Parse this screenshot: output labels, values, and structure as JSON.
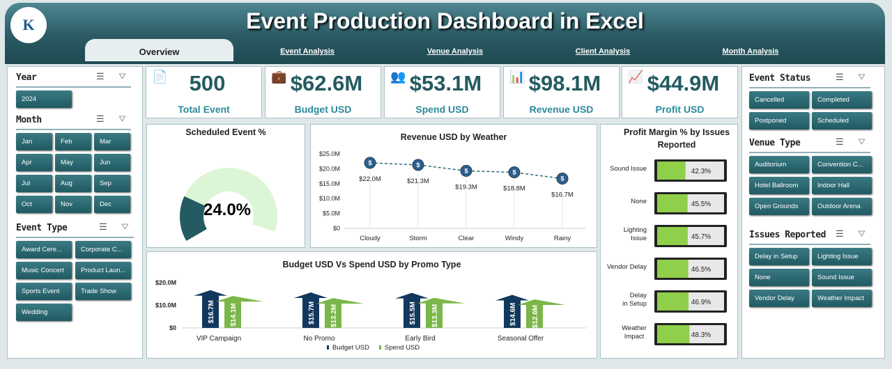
{
  "header": {
    "title": "Event Production Dashboard in Excel",
    "logo_text": "K"
  },
  "tabs": [
    {
      "label": "Overview",
      "active": true
    },
    {
      "label": "Event Analysis"
    },
    {
      "label": "Venue Analysis"
    },
    {
      "label": "Client Analysis"
    },
    {
      "label": "Month Analysis"
    }
  ],
  "left_slicers": {
    "year": {
      "title": "Year",
      "items": [
        "2024"
      ]
    },
    "month": {
      "title": "Month",
      "items": [
        "Jan",
        "Feb",
        "Mar",
        "Apr",
        "May",
        "Jun",
        "Jul",
        "Aug",
        "Sep",
        "Oct",
        "Nov",
        "Dec"
      ]
    },
    "event_type": {
      "title": "Event Type",
      "items": [
        "Award Cere...",
        "Corporate C...",
        "Music Concert",
        "Product Laun...",
        "Sports Event",
        "Trade Show",
        "Wedding"
      ]
    }
  },
  "right_slicers": {
    "event_status": {
      "title": "Event Status",
      "items": [
        "Cancelled",
        "Completed",
        "Postponed",
        "Scheduled"
      ]
    },
    "venue_type": {
      "title": "Venue Type",
      "items": [
        "Auditorium",
        "Convention C...",
        "Hotel Ballroom",
        "Indoor Hall",
        "Open Grounds",
        "Outdoor Arena"
      ]
    },
    "issues": {
      "title": "Issues Reported",
      "items": [
        "Delay in Setup",
        "Lighting Issue",
        "None",
        "Sound Issue",
        "Vendor Delay",
        "Weather Impact"
      ]
    }
  },
  "kpis": [
    {
      "value": "500",
      "label": "Total Event",
      "icon": "document-check-icon"
    },
    {
      "value": "$62.6M",
      "label": "Budget USD",
      "icon": "budget-icon"
    },
    {
      "value": "$53.1M",
      "label": "Spend USD",
      "icon": "money-people-icon"
    },
    {
      "value": "$98.1M",
      "label": "Revenue USD",
      "icon": "revenue-chart-icon"
    },
    {
      "value": "$44.9M",
      "label": "Profit USD",
      "icon": "profit-chart-icon"
    }
  ],
  "colors": {
    "teal": "#245a61",
    "navy": "#12385e",
    "green": "#7ab648",
    "light_green": "#dcf5d6"
  },
  "chart_data": [
    {
      "type": "pie",
      "title": "Scheduled Event %",
      "values": [
        24.0,
        76.0
      ],
      "label": "24.0%"
    },
    {
      "type": "line",
      "title": "Revenue USD by Weather",
      "categories": [
        "Cloudy",
        "Storm",
        "Clear",
        "Windy",
        "Rainy"
      ],
      "values": [
        22.0,
        21.3,
        19.3,
        18.8,
        16.7
      ],
      "data_labels": [
        "$22.0M",
        "$21.3M",
        "$19.3M",
        "$18.8M",
        "$16.7M"
      ],
      "ylim": [
        0,
        25
      ],
      "yticks": [
        "$0",
        "$5.0M",
        "$10.0M",
        "$15.0M",
        "$20.0M",
        "$25.0M"
      ]
    },
    {
      "type": "bar",
      "title": "Budget USD Vs Spend USD by Promo Type",
      "categories": [
        "VIP Campaign",
        "No Promo",
        "Early Bird",
        "Seasonal Offer"
      ],
      "series": [
        {
          "name": "Budget USD",
          "values": [
            16.7,
            15.7,
            15.5,
            14.6
          ],
          "labels": [
            "$16.7M",
            "$15.7M",
            "$15.5M",
            "$14.6M"
          ]
        },
        {
          "name": "Spend USD",
          "values": [
            14.1,
            13.2,
            13.3,
            12.6
          ],
          "labels": [
            "$14.1M",
            "$13.2M",
            "$13.3M",
            "$12.6M"
          ]
        }
      ],
      "ylim": [
        0,
        20
      ],
      "yticks": [
        "$0",
        "$10.0M",
        "$20.0M"
      ],
      "legend": "bottom"
    },
    {
      "type": "bar",
      "title": "Profit Margin % by Issues Reported",
      "categories": [
        "Sound Issue",
        "None",
        "Lighting Issue",
        "Vendor Delay",
        "Delay in Setup",
        "Weather Impact"
      ],
      "values": [
        42.3,
        45.5,
        45.7,
        46.5,
        46.9,
        48.3
      ],
      "labels": [
        "42.3%",
        "45.5%",
        "45.7%",
        "46.5%",
        "46.9%",
        "48.3%"
      ]
    }
  ]
}
